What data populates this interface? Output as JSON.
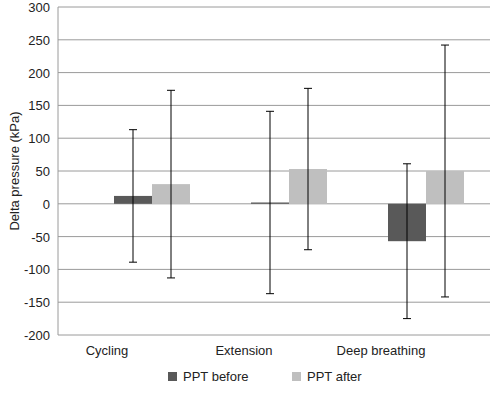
{
  "chart_data": {
    "type": "bar",
    "y_label": "Delta pressure (kPa)",
    "categories": [
      "Cycling",
      "Extension",
      "Deep breathing"
    ],
    "series": [
      {
        "name": "PPT before",
        "color": "#595959",
        "values": [
          12,
          2,
          -57
        ],
        "errors": [
          101,
          139,
          118
        ]
      },
      {
        "name": "PPT after",
        "color": "#bfbfbf",
        "values": [
          30,
          53,
          50
        ],
        "errors": [
          143,
          123,
          192
        ]
      }
    ],
    "ylim": [
      -200,
      300
    ],
    "yticks": [
      -200,
      -150,
      -100,
      -50,
      0,
      50,
      100,
      150,
      200,
      250,
      300
    ],
    "grid": true,
    "legend": "bottom"
  }
}
